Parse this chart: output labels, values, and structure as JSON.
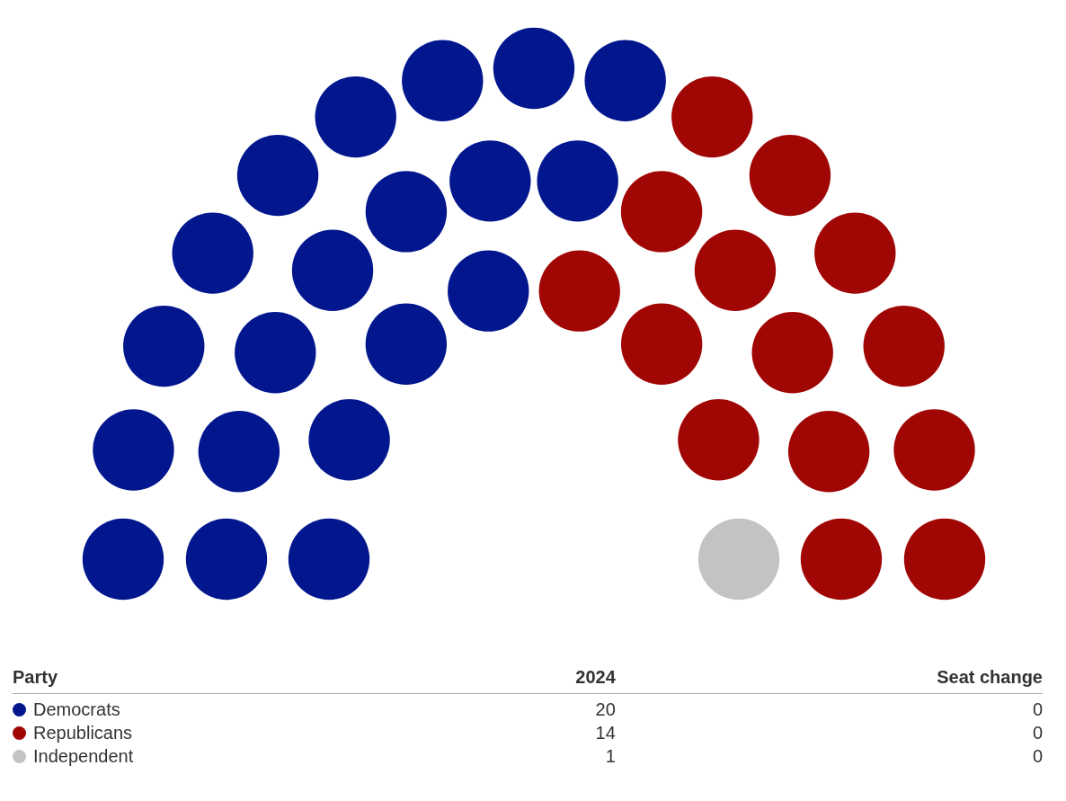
{
  "chart_data": {
    "type": "other",
    "legend_title": "Party",
    "categories": [
      "Democrats",
      "Republicans",
      "Independent"
    ],
    "colors": [
      "#02168e",
      "#a00604",
      "#c3c3c3"
    ],
    "series": [
      {
        "name": "2024",
        "values": [
          20,
          14,
          1
        ]
      },
      {
        "name": "Seat change",
        "values": [
          0,
          0,
          0
        ]
      }
    ],
    "data_labels": true
  }
}
